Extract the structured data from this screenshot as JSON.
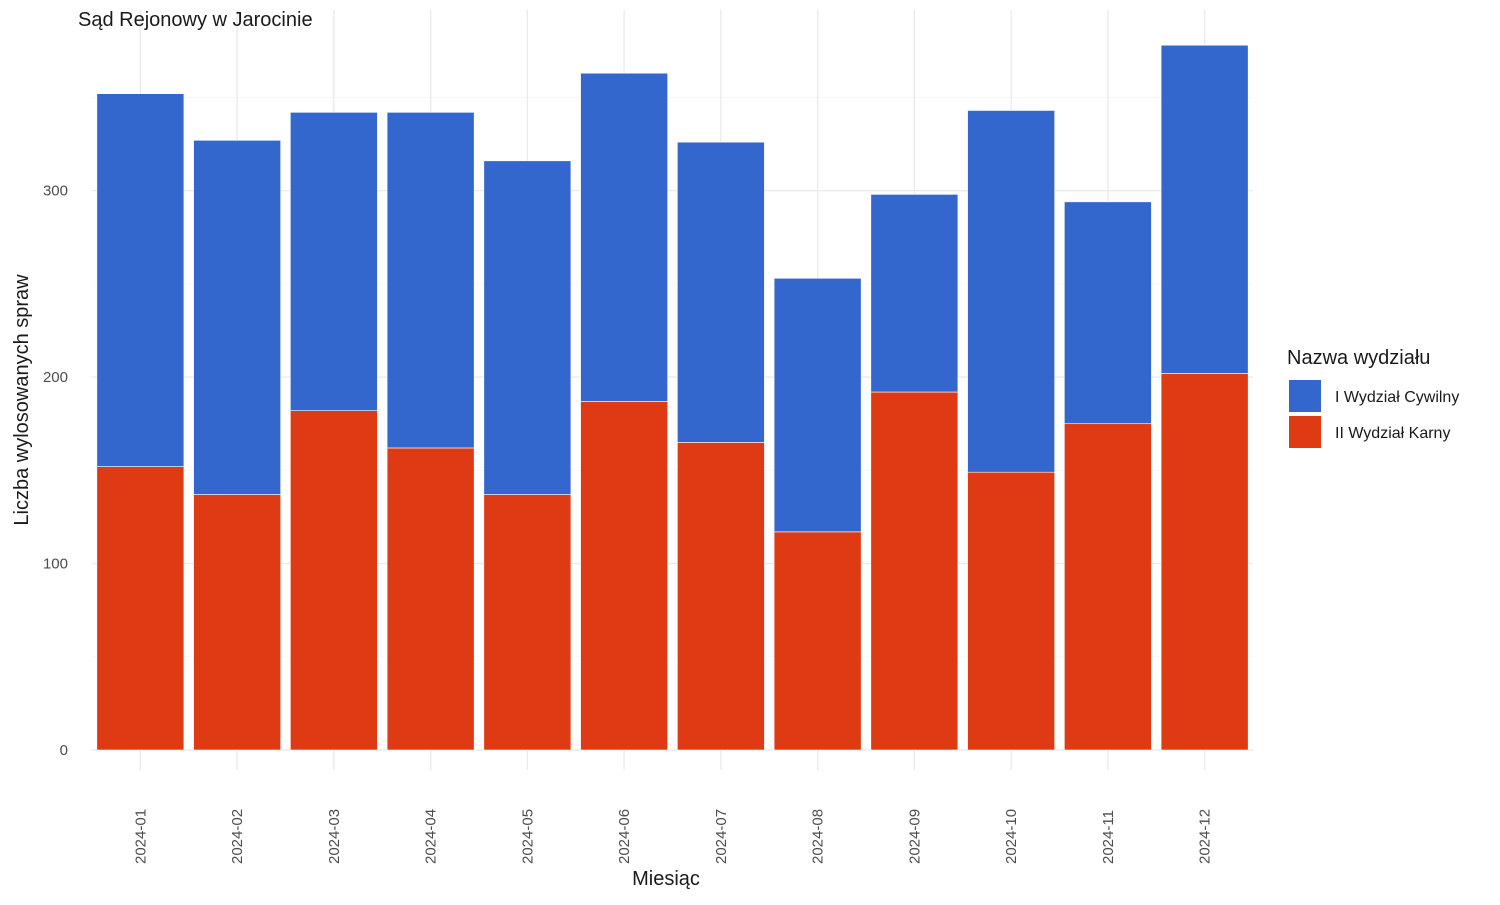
{
  "chart_data": {
    "type": "bar",
    "stacked": true,
    "title": "Sąd Rejonowy w Jarocinie",
    "xlabel": "Miesiąc",
    "ylabel": "Liczba wylosowanych spraw",
    "ylim": [
      0,
      380
    ],
    "y_ticks": [
      0,
      100,
      200,
      300
    ],
    "grid": true,
    "legend_title": "Nazwa wydziału",
    "legend_position": "right",
    "categories": [
      "2024-01",
      "2024-02",
      "2024-03",
      "2024-04",
      "2024-05",
      "2024-06",
      "2024-07",
      "2024-08",
      "2024-09",
      "2024-10",
      "2024-11",
      "2024-12"
    ],
    "series": [
      {
        "name": "II Wydział Karny",
        "color": "#de3a13",
        "values": [
          152,
          137,
          182,
          162,
          137,
          187,
          165,
          117,
          192,
          149,
          175,
          202
        ]
      },
      {
        "name": "I Wydział Cywilny",
        "color": "#3367cd",
        "values": [
          200,
          190,
          160,
          180,
          179,
          176,
          161,
          136,
          106,
          194,
          119,
          176
        ]
      }
    ],
    "legend_order": [
      "I Wydział Cywilny",
      "II Wydział Karny"
    ]
  }
}
